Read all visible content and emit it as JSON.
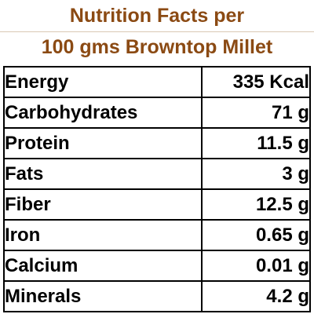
{
  "title": {
    "line1": "Nutrition Facts per",
    "line2": "100 gms Browntop Millet"
  },
  "nutrients": [
    {
      "name": "Energy",
      "value": "335 Kcal"
    },
    {
      "name": "Carbohydrates",
      "value": "71 g"
    },
    {
      "name": "Protein",
      "value": "11.5 g"
    },
    {
      "name": "Fats",
      "value": "3 g"
    },
    {
      "name": "Fiber",
      "value": "12.5 g"
    },
    {
      "name": "Iron",
      "value": "0.65 g"
    },
    {
      "name": "Calcium",
      "value": "0.01 g"
    },
    {
      "name": "Minerals",
      "value": "4.2 g"
    }
  ],
  "colors": {
    "title": "#8b4a13",
    "border": "#000000",
    "text": "#000000"
  }
}
